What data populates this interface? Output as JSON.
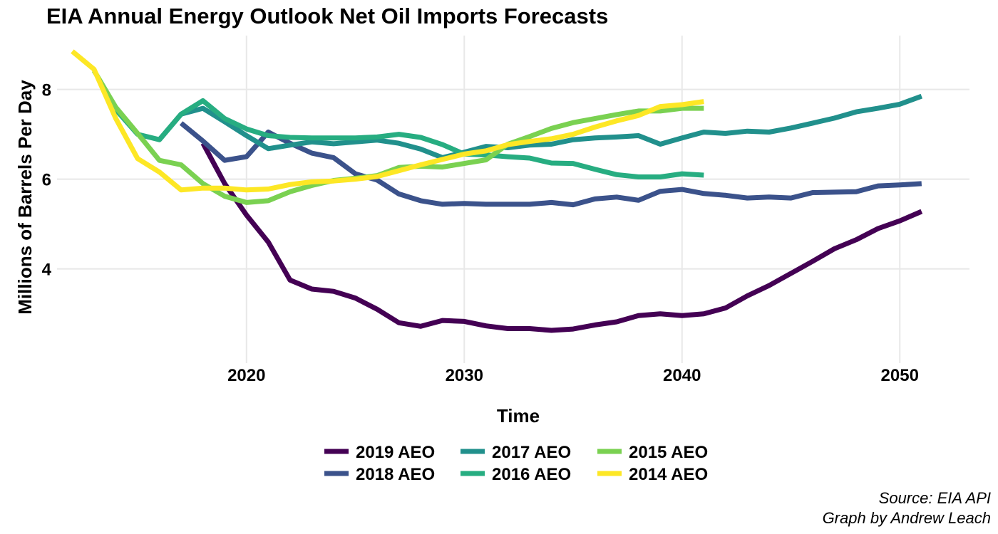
{
  "chart_data": {
    "type": "line",
    "title": "EIA Annual Energy Outlook Net Oil Imports Forecasts",
    "xlabel": "Time",
    "ylabel": "Millions of Barrels Per Day",
    "xlim": [
      2011.3,
      2053.2
    ],
    "ylim": [
      1.9,
      9.2
    ],
    "x_ticks": [
      2020,
      2030,
      2040,
      2050
    ],
    "y_ticks": [
      4,
      6,
      8
    ],
    "grid": true,
    "legend_position": "bottom",
    "caption": [
      "Source: EIA API",
      "Graph by Andrew Leach"
    ],
    "series": [
      {
        "name": "2019 AEO",
        "color": "#440154",
        "x": [
          2018,
          2019,
          2020,
          2021,
          2022,
          2023,
          2024,
          2025,
          2026,
          2027,
          2028,
          2029,
          2030,
          2031,
          2032,
          2033,
          2034,
          2035,
          2036,
          2037,
          2038,
          2039,
          2040,
          2041,
          2042,
          2043,
          2044,
          2045,
          2046,
          2047,
          2048,
          2049,
          2050,
          2051
        ],
        "y": [
          6.8,
          5.9,
          5.2,
          4.6,
          3.75,
          3.55,
          3.5,
          3.35,
          3.1,
          2.8,
          2.72,
          2.85,
          2.83,
          2.73,
          2.67,
          2.67,
          2.63,
          2.66,
          2.75,
          2.82,
          2.96,
          3.0,
          2.96,
          3.0,
          3.13,
          3.4,
          3.63,
          3.9,
          4.17,
          4.45,
          4.65,
          4.9,
          5.07,
          5.28
        ]
      },
      {
        "name": "2018 AEO",
        "color": "#3b528b",
        "x": [
          2017,
          2018,
          2019,
          2020,
          2021,
          2022,
          2023,
          2024,
          2025,
          2026,
          2027,
          2028,
          2029,
          2030,
          2031,
          2032,
          2033,
          2034,
          2035,
          2036,
          2037,
          2038,
          2039,
          2040,
          2041,
          2042,
          2043,
          2044,
          2045,
          2046,
          2047,
          2048,
          2049,
          2050,
          2051
        ],
        "y": [
          7.25,
          6.85,
          6.42,
          6.5,
          7.05,
          6.8,
          6.58,
          6.48,
          6.12,
          5.98,
          5.67,
          5.52,
          5.44,
          5.46,
          5.44,
          5.44,
          5.44,
          5.48,
          5.43,
          5.56,
          5.6,
          5.53,
          5.73,
          5.77,
          5.68,
          5.64,
          5.58,
          5.6,
          5.58,
          5.7,
          5.71,
          5.72,
          5.85,
          5.87,
          5.9
        ]
      },
      {
        "name": "2017 AEO",
        "color": "#21908c",
        "x": [
          2016,
          2017,
          2018,
          2019,
          2020,
          2021,
          2022,
          2023,
          2024,
          2025,
          2026,
          2027,
          2028,
          2029,
          2030,
          2031,
          2032,
          2033,
          2034,
          2035,
          2036,
          2037,
          2038,
          2039,
          2040,
          2041,
          2042,
          2043,
          2044,
          2045,
          2046,
          2047,
          2048,
          2049,
          2050,
          2051
        ],
        "y": [
          6.88,
          7.45,
          7.58,
          7.28,
          6.97,
          6.68,
          6.76,
          6.83,
          6.79,
          6.83,
          6.87,
          6.8,
          6.67,
          6.48,
          6.6,
          6.73,
          6.7,
          6.76,
          6.78,
          6.88,
          6.92,
          6.94,
          6.97,
          6.78,
          6.92,
          7.05,
          7.02,
          7.07,
          7.05,
          7.14,
          7.25,
          7.36,
          7.5,
          7.58,
          7.67,
          7.85
        ]
      },
      {
        "name": "2016 AEO",
        "color": "#27ad81",
        "x": [
          2014,
          2015,
          2016,
          2017,
          2018,
          2019,
          2020,
          2021,
          2022,
          2023,
          2024,
          2025,
          2026,
          2027,
          2028,
          2029,
          2030,
          2031,
          2032,
          2033,
          2034,
          2035,
          2036,
          2037,
          2038,
          2039,
          2040,
          2041
        ],
        "y": [
          7.55,
          7.0,
          6.88,
          7.45,
          7.75,
          7.35,
          7.12,
          6.97,
          6.93,
          6.92,
          6.92,
          6.92,
          6.94,
          7.0,
          6.93,
          6.77,
          6.56,
          6.54,
          6.5,
          6.47,
          6.36,
          6.35,
          6.22,
          6.1,
          6.05,
          6.05,
          6.12,
          6.09
        ]
      },
      {
        "name": "2015 AEO",
        "color": "#7ad151",
        "x": [
          2013,
          2014,
          2015,
          2016,
          2017,
          2018,
          2019,
          2020,
          2021,
          2022,
          2023,
          2024,
          2025,
          2026,
          2027,
          2028,
          2029,
          2030,
          2031,
          2032,
          2033,
          2034,
          2035,
          2036,
          2037,
          2038,
          2039,
          2040,
          2041
        ],
        "y": [
          8.42,
          7.6,
          7.02,
          6.42,
          6.32,
          5.9,
          5.62,
          5.48,
          5.52,
          5.72,
          5.86,
          5.97,
          6.02,
          6.08,
          6.26,
          6.29,
          6.27,
          6.35,
          6.43,
          6.78,
          6.95,
          7.13,
          7.26,
          7.35,
          7.44,
          7.52,
          7.52,
          7.58,
          7.58
        ]
      },
      {
        "name": "2014 AEO",
        "color": "#fde725",
        "x": [
          2012,
          2013,
          2014,
          2015,
          2016,
          2017,
          2018,
          2019,
          2020,
          2021,
          2022,
          2023,
          2024,
          2025,
          2026,
          2027,
          2028,
          2029,
          2030,
          2031,
          2032,
          2033,
          2034,
          2035,
          2036,
          2037,
          2038,
          2039,
          2040,
          2041
        ],
        "y": [
          8.85,
          8.45,
          7.35,
          6.46,
          6.16,
          5.76,
          5.8,
          5.8,
          5.76,
          5.78,
          5.88,
          5.94,
          5.96,
          6.0,
          6.06,
          6.19,
          6.32,
          6.44,
          6.56,
          6.63,
          6.77,
          6.84,
          6.9,
          7.0,
          7.16,
          7.3,
          7.42,
          7.62,
          7.66,
          7.73
        ]
      }
    ]
  }
}
